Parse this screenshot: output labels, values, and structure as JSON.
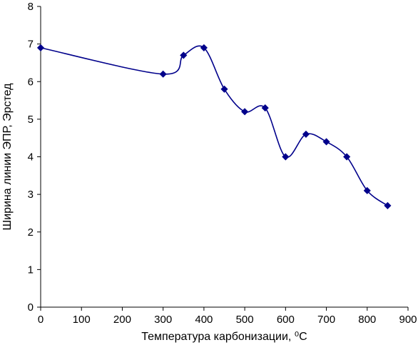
{
  "chart_data": {
    "type": "line",
    "title": "",
    "xlabel": "Температура карбонизации, ⁰С",
    "ylabel": "Ширина линии ЭПР, Эрстед",
    "xlim": [
      0,
      900
    ],
    "ylim": [
      0,
      8
    ],
    "x_ticks": [
      0,
      100,
      200,
      300,
      400,
      500,
      600,
      700,
      800,
      900
    ],
    "y_ticks": [
      0,
      1,
      2,
      3,
      4,
      5,
      6,
      7,
      8
    ],
    "x_tick_labels": [
      "0",
      "100",
      "200",
      "300",
      "400",
      "500",
      "600",
      "700",
      "800",
      "900"
    ],
    "y_tick_labels": [
      "0",
      "1",
      "2",
      "3",
      "4",
      "5",
      "6",
      "7",
      "8"
    ],
    "grid": false,
    "legend": "none",
    "series": [
      {
        "color": "#00008B",
        "marker": "diamond",
        "smooth": true,
        "x": [
          0,
          300,
          350,
          400,
          450,
          500,
          550,
          600,
          650,
          700,
          750,
          800,
          850
        ],
        "y": [
          6.9,
          6.2,
          6.7,
          6.9,
          5.8,
          5.2,
          5.3,
          4.0,
          4.6,
          4.4,
          4.0,
          3.1,
          2.7
        ]
      }
    ]
  }
}
